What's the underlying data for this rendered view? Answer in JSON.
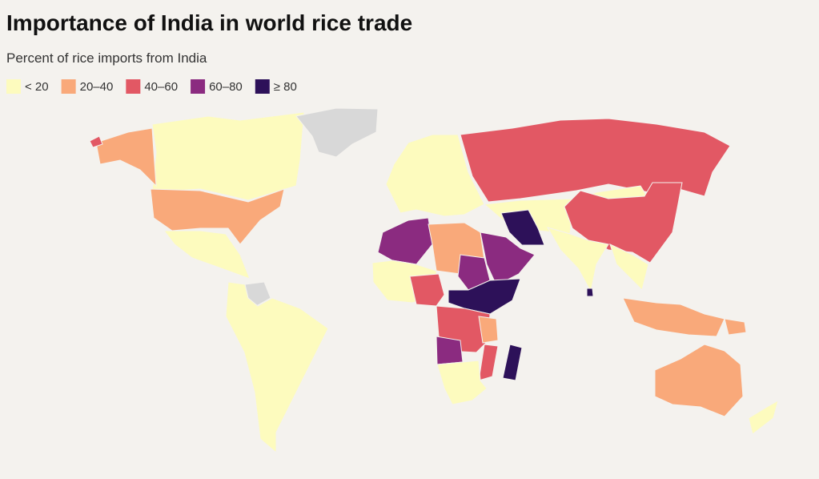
{
  "title": "Importance of India in world rice trade",
  "subtitle": "Percent of rice imports from India",
  "legend": [
    {
      "label": "< 20",
      "color": "#fdfbbe"
    },
    {
      "label": "20–40",
      "color": "#f9a97a"
    },
    {
      "label": "40–60",
      "color": "#e25864"
    },
    {
      "label": "60–80",
      "color": "#8b2b80"
    },
    {
      "label": "≥ 80",
      "color": "#2d1159"
    }
  ]
}
